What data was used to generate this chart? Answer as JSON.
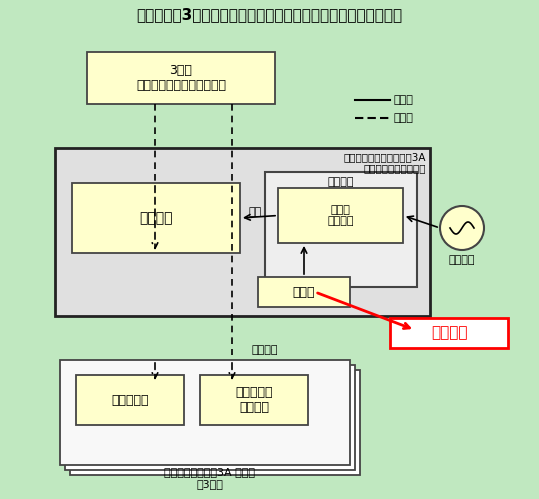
{
  "title": "伊方発電所3号機　非常用ディーゼル発電機室消火設備　概略図",
  "bg_color": "#c0e8c0",
  "box_fill": "#ffffcc",
  "box_edge": "#444444",
  "legend_solid_label": "電源系",
  "legend_dashed_label": "信号系",
  "top_box_text": "3号機\n中央制御室　火災受信機盤",
  "main_panel_label": "非常用ディーゼル発電機3A\n二酸化炭素消火設備盤",
  "control_circuit_label": "制御回路",
  "power_unit_label": "電源装置",
  "overvoltage_label": "過電圧\n保護装置",
  "battery_label": "蓄電池",
  "dc_label": "直流",
  "ac_source_label": "交流電源",
  "signal_label": "起動信号",
  "fire_sensor_label": "火災感知器",
  "co2_device_label": "二酸化炭素\n消火装置",
  "bottom_area_label": "ディーゼル発電機3A エリア\n計3箇所",
  "highlight_label": "当該箇所",
  "highlight_color": "#ff0000"
}
